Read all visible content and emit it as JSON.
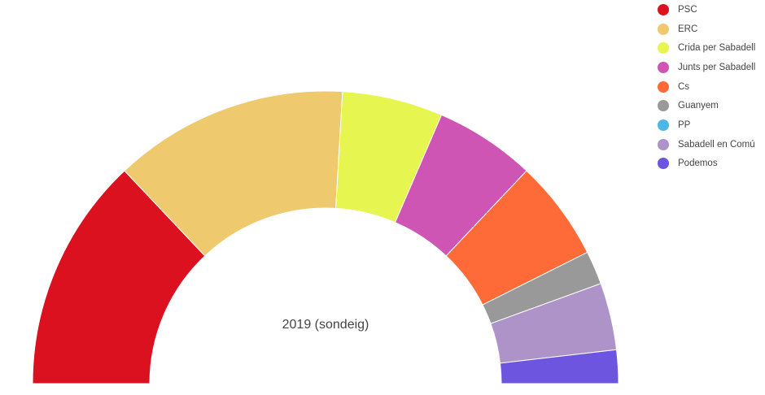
{
  "chart_data": {
    "type": "pie",
    "subtype": "parliament-half-donut",
    "center_label": "2019 (sondeig)",
    "legend_position": "right",
    "series": [
      {
        "name": "PSC",
        "value": 7,
        "color": "#db1120"
      },
      {
        "name": "ERC",
        "value": 7,
        "color": "#efc96d"
      },
      {
        "name": "Crida per Sabadell",
        "value": 3,
        "color": "#e6f550"
      },
      {
        "name": "Junts per Sabadell",
        "value": 3,
        "color": "#cf55b4"
      },
      {
        "name": "Cs",
        "value": 3,
        "color": "#ff6b38"
      },
      {
        "name": "Guanyem",
        "value": 1,
        "color": "#999999"
      },
      {
        "name": "PP",
        "value": 0,
        "color": "#4db6e6"
      },
      {
        "name": "Sabadell en Comú",
        "value": 2,
        "color": "#ae93c8"
      },
      {
        "name": "Podemos",
        "value": 1,
        "color": "#6d55e0"
      }
    ]
  }
}
